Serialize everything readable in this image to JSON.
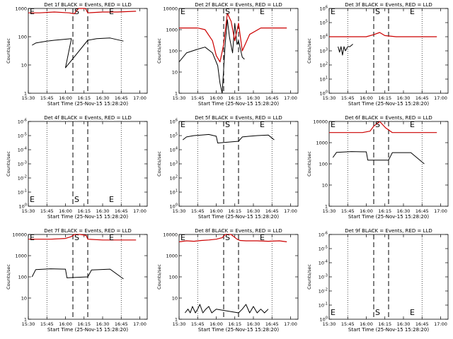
{
  "figure": {
    "background": "#ffffff",
    "event_color": "#000000",
    "lld_color": "#cc0000"
  },
  "chart_data": [
    {
      "type": "line",
      "title": "Det 1f BLACK = Events, RED = LLD",
      "xlabel": "Start Time (25-Nov-15 15:28:20)",
      "ylabel": "Counts/sec",
      "xticks": [
        "15:30",
        "15:45",
        "16:00",
        "16:15",
        "16:30",
        "16:45",
        "17:00"
      ],
      "yticks": [
        "1",
        "10",
        "100",
        "1000"
      ],
      "ylim": [
        1,
        1000
      ],
      "log_y": true,
      "markers": [
        "E",
        "S",
        "E"
      ],
      "series": [
        {
          "name": "Events",
          "color": "#000000",
          "x": [
            15.55,
            15.6,
            15.75,
            15.85,
            16.08,
            16.0,
            16.3,
            16.42,
            16.6,
            16.78
          ],
          "y": [
            50,
            60,
            70,
            75,
            85,
            8,
            75,
            85,
            90,
            70
          ]
        },
        {
          "name": "LLD",
          "color": "#cc0000",
          "x": [
            15.5,
            15.65,
            15.85,
            16.05,
            16.12,
            16.17,
            16.27,
            16.3,
            16.5,
            16.7,
            16.95
          ],
          "y": [
            700,
            700,
            750,
            700,
            650,
            1000,
            1000,
            700,
            750,
            750,
            800
          ]
        }
      ]
    },
    {
      "type": "line",
      "title": "Det 2f BLACK = Events, RED = LLD",
      "xlabel": "Start Time (25-Nov-15 15:28:20)",
      "ylabel": "Counts/sec",
      "xticks": [
        "15:30",
        "15:45",
        "16:00",
        "16:15",
        "16:30",
        "16:45",
        "17:00"
      ],
      "yticks": [
        "1",
        "10",
        "100",
        "1000",
        "10000"
      ],
      "ylim": [
        1,
        10000
      ],
      "log_y": true,
      "markers": [
        "E",
        "S",
        "E"
      ],
      "series": [
        {
          "name": "Events",
          "color": "#000000",
          "x": [
            15.5,
            15.6,
            15.75,
            15.85,
            15.95,
            16.02,
            16.05,
            16.08,
            16.12,
            16.15,
            16.18,
            16.22,
            16.25,
            16.28,
            16.3,
            16.35,
            16.38
          ],
          "y": [
            30,
            80,
            120,
            150,
            80,
            20,
            3,
            1,
            200,
            3000,
            400,
            80,
            2000,
            200,
            300,
            50,
            40
          ]
        },
        {
          "name": "LLD",
          "color": "#cc0000",
          "x": [
            15.5,
            15.75,
            15.85,
            15.95,
            16.0,
            16.05,
            16.1,
            16.15,
            16.2,
            16.25,
            16.3,
            16.35,
            16.45,
            16.6,
            16.95
          ],
          "y": [
            1200,
            1200,
            1000,
            300,
            60,
            30,
            200,
            6000,
            2500,
            300,
            2000,
            100,
            600,
            1200,
            1200
          ]
        }
      ]
    },
    {
      "type": "line",
      "title": "Det 3f BLACK = Events, RED = LLD",
      "xlabel": "Start Time (25-Nov-15 15:28:20)",
      "ylabel": "Counts/sec",
      "xticks": [
        "15:30",
        "15:45",
        "16:00",
        "16:15",
        "16:30",
        "16:45",
        "17:00"
      ],
      "yticks": [
        "10^0",
        "10^1",
        "10^2",
        "10^3",
        "10^4",
        "10^5",
        "10^6"
      ],
      "ylim": [
        1,
        1000000
      ],
      "log_y": true,
      "markers": [
        "E",
        "S",
        "E"
      ],
      "series": [
        {
          "name": "Events",
          "color": "#000000",
          "x": [
            15.62,
            15.64,
            15.66,
            15.68,
            15.7,
            15.72,
            15.75,
            15.78,
            15.82
          ],
          "y": [
            2000,
            800,
            2000,
            500,
            2000,
            1000,
            2000,
            2000,
            3000
          ]
        },
        {
          "name": "LLD",
          "color": "#cc0000",
          "x": [
            15.5,
            15.75,
            16.0,
            16.1,
            16.18,
            16.25,
            16.4,
            16.95
          ],
          "y": [
            10000,
            10000,
            10000,
            14000,
            20000,
            12000,
            10000,
            10000
          ]
        }
      ]
    },
    {
      "type": "line",
      "title": "Det 4f BLACK = Events, RED = LLD",
      "xlabel": "Start Time (25-Nov-15 15:28:20)",
      "ylabel": "Counts/sec",
      "xticks": [
        "15:30",
        "15:45",
        "16:00",
        "16:15",
        "16:30",
        "16:45",
        "17:00"
      ],
      "yticks": [
        "10^0",
        "10^-1",
        "10^-2",
        "10^-3",
        "10^-4",
        "10^-5",
        "10^-6"
      ],
      "ylim": [
        1e-06,
        1
      ],
      "log_y": true,
      "markers": [
        "E",
        "S",
        "E"
      ],
      "series": []
    },
    {
      "type": "line",
      "title": "Det 5f BLACK = Events, RED = LLD",
      "xlabel": "Start Time (25-Nov-15 15:28:20)",
      "ylabel": "Counts/sec",
      "xticks": [
        "15:30",
        "15:45",
        "16:00",
        "16:15",
        "16:30",
        "16:45",
        "17:00"
      ],
      "yticks": [
        "10^0",
        "10^1",
        "10^2",
        "10^3",
        "10^4",
        "10^5",
        "10^6"
      ],
      "ylim": [
        1,
        1000000
      ],
      "log_y": true,
      "markers": [
        "E",
        "S",
        "E"
      ],
      "series": [
        {
          "name": "Events",
          "color": "#000000",
          "x": [
            15.55,
            15.6,
            15.7,
            15.8,
            15.9,
            16.0,
            16.02,
            16.3,
            16.35,
            16.45,
            16.55,
            16.7,
            16.78
          ],
          "y": [
            50000,
            80000,
            100000,
            110000,
            120000,
            90000,
            30000,
            40000,
            80000,
            90000,
            100000,
            110000,
            50000
          ]
        }
      ]
    },
    {
      "type": "line",
      "title": "Det 6f BLACK = Events, RED = LLD",
      "xlabel": "Start Time (25-Nov-15 15:28:20)",
      "ylabel": "Counts/sec",
      "xticks": [
        "15:30",
        "15:45",
        "16:00",
        "16:15",
        "16:30",
        "16:45",
        "17:00"
      ],
      "yticks": [
        "1",
        "10",
        "100",
        "1000",
        "10000"
      ],
      "ylim": [
        1,
        10000
      ],
      "log_y": true,
      "markers": [
        "E",
        "S",
        "E"
      ],
      "series": [
        {
          "name": "Events",
          "color": "#000000",
          "x": [
            15.55,
            15.6,
            15.8,
            16.0,
            16.02,
            16.3,
            16.35,
            16.6,
            16.78
          ],
          "y": [
            200,
            350,
            380,
            370,
            150,
            150,
            340,
            340,
            100
          ]
        },
        {
          "name": "LLD",
          "color": "#cc0000",
          "x": [
            15.5,
            15.8,
            15.95,
            16.05,
            16.1,
            16.18,
            16.26,
            16.35,
            16.5,
            16.95
          ],
          "y": [
            3000,
            3000,
            3000,
            3500,
            6000,
            10000,
            5000,
            3000,
            3000,
            3000
          ]
        }
      ]
    },
    {
      "type": "line",
      "title": "Det 7f BLACK = Events, RED = LLD",
      "xlabel": "Start Time (25-Nov-15 15:28:20)",
      "ylabel": "Counts/sec",
      "xticks": [
        "15:30",
        "15:45",
        "16:00",
        "16:15",
        "16:30",
        "16:45",
        "17:00"
      ],
      "yticks": [
        "1",
        "10",
        "100",
        "1000",
        "10000"
      ],
      "ylim": [
        1,
        10000
      ],
      "log_y": true,
      "markers": [
        "E",
        "S",
        "E"
      ],
      "series": [
        {
          "name": "Events",
          "color": "#000000",
          "x": [
            15.55,
            15.6,
            15.8,
            16.0,
            16.02,
            16.3,
            16.35,
            16.6,
            16.78
          ],
          "y": [
            100,
            220,
            240,
            230,
            90,
            100,
            210,
            230,
            80
          ]
        },
        {
          "name": "LLD",
          "color": "#cc0000",
          "x": [
            15.5,
            15.8,
            16.0,
            16.08,
            16.12,
            16.2,
            16.28,
            16.3,
            16.5,
            16.95
          ],
          "y": [
            6000,
            6000,
            6500,
            8000,
            10000,
            10000,
            9000,
            6000,
            5500,
            5500
          ]
        }
      ]
    },
    {
      "type": "line",
      "title": "Det 8f BLACK = Events, RED = LLD",
      "xlabel": "Start Time (25-Nov-15 15:28:20)",
      "ylabel": "Counts/sec",
      "xticks": [
        "15:30",
        "15:45",
        "16:00",
        "16:15",
        "16:30",
        "16:45",
        "17:00"
      ],
      "yticks": [
        "1",
        "10",
        "100",
        "1000",
        "10000"
      ],
      "ylim": [
        1,
        10000
      ],
      "log_y": true,
      "markers": [
        "E",
        "S",
        "E"
      ],
      "series": [
        {
          "name": "Events",
          "color": "#000000",
          "x": [
            15.58,
            15.62,
            15.65,
            15.68,
            15.72,
            15.75,
            15.78,
            15.82,
            15.86,
            15.9,
            15.94,
            16.0,
            16.3,
            16.35,
            16.4,
            16.45,
            16.5,
            16.55,
            16.6,
            16.65,
            16.7
          ],
          "y": [
            2,
            3,
            2,
            4,
            2,
            3,
            5,
            2,
            3,
            4,
            2,
            3,
            2,
            3,
            5,
            2,
            4,
            2,
            3,
            2,
            3
          ]
        },
        {
          "name": "LLD",
          "color": "#cc0000",
          "x": [
            15.5,
            15.6,
            15.7,
            15.8,
            15.9,
            16.0,
            16.08,
            16.12,
            16.2,
            16.28,
            16.32,
            16.4,
            16.55,
            16.7,
            16.85,
            16.95
          ],
          "y": [
            4500,
            5000,
            4800,
            5200,
            5500,
            6000,
            7000,
            10000,
            10000,
            6000,
            5200,
            5000,
            5000,
            4800,
            5000,
            4500
          ]
        }
      ]
    },
    {
      "type": "line",
      "title": "Det 9f BLACK = Events, RED = LLD",
      "xlabel": "Start Time (25-Nov-15 15:28:20)",
      "ylabel": "Counts/sec",
      "xticks": [
        "15:30",
        "15:45",
        "16:00",
        "16:15",
        "16:30",
        "16:45",
        "17:00"
      ],
      "yticks": [
        "10^0",
        "10^-1",
        "10^-2",
        "10^-3",
        "10^-4",
        "10^-5",
        "10^-6"
      ],
      "ylim": [
        1e-06,
        1
      ],
      "log_y": true,
      "markers": [
        "E",
        "S",
        "E"
      ],
      "series": []
    }
  ]
}
